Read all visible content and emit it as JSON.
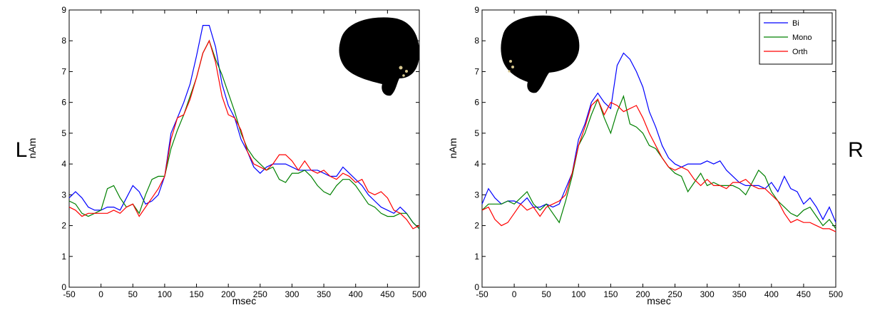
{
  "chart_data": [
    {
      "type": "line",
      "annotation": "L",
      "x_label": "msec",
      "y_label": "nAm",
      "legend": false,
      "x": [
        -50,
        -40,
        -30,
        -20,
        -10,
        0,
        10,
        20,
        30,
        40,
        50,
        60,
        70,
        80,
        90,
        100,
        110,
        120,
        130,
        140,
        150,
        160,
        170,
        180,
        190,
        200,
        210,
        220,
        230,
        240,
        250,
        260,
        270,
        280,
        290,
        300,
        310,
        320,
        330,
        340,
        350,
        360,
        370,
        380,
        390,
        400,
        410,
        420,
        430,
        440,
        450,
        460,
        470,
        480,
        490,
        500
      ],
      "series": [
        {
          "color": "#0000ff",
          "values": [
            2.9,
            3.1,
            2.9,
            2.6,
            2.5,
            2.5,
            2.6,
            2.6,
            2.5,
            2.9,
            3.3,
            3.1,
            2.7,
            2.8,
            3.0,
            3.6,
            5.0,
            5.5,
            6.0,
            6.6,
            7.5,
            8.5,
            8.5,
            7.8,
            6.6,
            5.9,
            5.5,
            4.8,
            4.4,
            3.9,
            3.7,
            3.9,
            4.0,
            4.0,
            4.0,
            3.9,
            3.8,
            3.8,
            3.8,
            3.8,
            3.7,
            3.6,
            3.6,
            3.9,
            3.7,
            3.5,
            3.3,
            3.0,
            2.8,
            2.6,
            2.5,
            2.4,
            2.6,
            2.4,
            2.1,
            1.9
          ]
        },
        {
          "color": "#008000",
          "values": [
            2.8,
            2.7,
            2.4,
            2.3,
            2.4,
            2.5,
            3.2,
            3.3,
            2.9,
            2.6,
            2.7,
            2.4,
            3.0,
            3.5,
            3.6,
            3.6,
            4.5,
            5.1,
            5.6,
            6.2,
            6.8,
            7.6,
            8.0,
            7.4,
            6.9,
            6.3,
            5.7,
            5.0,
            4.5,
            4.2,
            4.0,
            3.8,
            3.9,
            3.5,
            3.4,
            3.7,
            3.7,
            3.8,
            3.6,
            3.3,
            3.1,
            3.0,
            3.3,
            3.5,
            3.5,
            3.3,
            3.0,
            2.7,
            2.6,
            2.4,
            2.3,
            2.3,
            2.4,
            2.4,
            2.1,
            1.9
          ]
        },
        {
          "color": "#ff0000",
          "values": [
            2.6,
            2.5,
            2.3,
            2.4,
            2.4,
            2.4,
            2.4,
            2.5,
            2.4,
            2.6,
            2.7,
            2.3,
            2.6,
            2.9,
            3.2,
            3.6,
            4.8,
            5.5,
            5.6,
            6.1,
            6.8,
            7.6,
            8.0,
            7.3,
            6.2,
            5.6,
            5.5,
            5.1,
            4.4,
            4.0,
            3.9,
            3.8,
            4.0,
            4.3,
            4.3,
            4.1,
            3.8,
            4.1,
            3.8,
            3.7,
            3.8,
            3.6,
            3.5,
            3.7,
            3.6,
            3.4,
            3.5,
            3.1,
            3.0,
            3.1,
            2.9,
            2.5,
            2.4,
            2.2,
            1.9,
            2.0
          ]
        }
      ],
      "xlim": [
        -50,
        500
      ],
      "ylim": [
        0,
        9
      ],
      "xticks": [
        -50,
        0,
        50,
        100,
        150,
        200,
        250,
        300,
        350,
        400,
        450,
        500
      ],
      "yticks": [
        0,
        1,
        2,
        3,
        4,
        5,
        6,
        7,
        8,
        9
      ]
    },
    {
      "type": "line",
      "annotation": "R",
      "x_label": "msec",
      "y_label": "nAm",
      "legend": "upper right",
      "x": [
        -50,
        -40,
        -30,
        -20,
        -10,
        0,
        10,
        20,
        30,
        40,
        50,
        60,
        70,
        80,
        90,
        100,
        110,
        120,
        130,
        140,
        150,
        160,
        170,
        180,
        190,
        200,
        210,
        220,
        230,
        240,
        250,
        260,
        270,
        280,
        290,
        300,
        310,
        320,
        330,
        340,
        350,
        360,
        370,
        380,
        390,
        400,
        410,
        420,
        430,
        440,
        450,
        460,
        470,
        480,
        490,
        500
      ],
      "series": [
        {
          "name": "Bi",
          "color": "#0000ff",
          "values": [
            2.7,
            3.2,
            2.9,
            2.7,
            2.8,
            2.8,
            2.7,
            2.9,
            2.6,
            2.6,
            2.7,
            2.6,
            2.7,
            3.2,
            3.7,
            4.8,
            5.3,
            6.0,
            6.3,
            6.0,
            5.8,
            7.2,
            7.6,
            7.4,
            7.0,
            6.5,
            5.7,
            5.2,
            4.6,
            4.2,
            4.0,
            3.9,
            4.0,
            4.0,
            4.0,
            4.1,
            4.0,
            4.1,
            3.8,
            3.6,
            3.4,
            3.3,
            3.3,
            3.3,
            3.2,
            3.4,
            3.1,
            3.6,
            3.2,
            3.1,
            2.7,
            2.9,
            2.6,
            2.2,
            2.6,
            2.1
          ]
        },
        {
          "name": "Mono",
          "color": "#008000",
          "values": [
            2.5,
            2.7,
            2.7,
            2.7,
            2.8,
            2.7,
            2.9,
            3.1,
            2.7,
            2.5,
            2.7,
            2.4,
            2.1,
            2.8,
            3.6,
            4.6,
            5.0,
            5.6,
            6.1,
            5.5,
            5.0,
            5.7,
            6.2,
            5.3,
            5.2,
            5.0,
            4.6,
            4.5,
            4.2,
            3.9,
            3.7,
            3.6,
            3.1,
            3.4,
            3.7,
            3.3,
            3.4,
            3.3,
            3.3,
            3.3,
            3.2,
            3.0,
            3.4,
            3.8,
            3.6,
            3.1,
            2.8,
            2.6,
            2.4,
            2.3,
            2.5,
            2.6,
            2.3,
            2.0,
            2.2,
            1.9
          ]
        },
        {
          "name": "Orth",
          "color": "#ff0000",
          "values": [
            2.5,
            2.6,
            2.2,
            2.0,
            2.1,
            2.4,
            2.7,
            2.5,
            2.6,
            2.3,
            2.6,
            2.7,
            2.8,
            3.0,
            3.7,
            4.6,
            5.2,
            5.9,
            6.1,
            5.6,
            6.0,
            5.9,
            5.7,
            5.8,
            5.9,
            5.5,
            5.0,
            4.6,
            4.2,
            3.9,
            3.8,
            3.9,
            3.8,
            3.5,
            3.3,
            3.5,
            3.3,
            3.3,
            3.2,
            3.4,
            3.4,
            3.5,
            3.3,
            3.2,
            3.2,
            3.0,
            2.8,
            2.4,
            2.1,
            2.2,
            2.1,
            2.1,
            2.0,
            1.9,
            1.9,
            1.8
          ]
        }
      ],
      "xlim": [
        -50,
        500
      ],
      "ylim": [
        0,
        9
      ],
      "xticks": [
        -50,
        0,
        50,
        100,
        150,
        200,
        250,
        300,
        350,
        400,
        450,
        500
      ],
      "yticks": [
        0,
        1,
        2,
        3,
        4,
        5,
        6,
        7,
        8,
        9
      ]
    }
  ]
}
